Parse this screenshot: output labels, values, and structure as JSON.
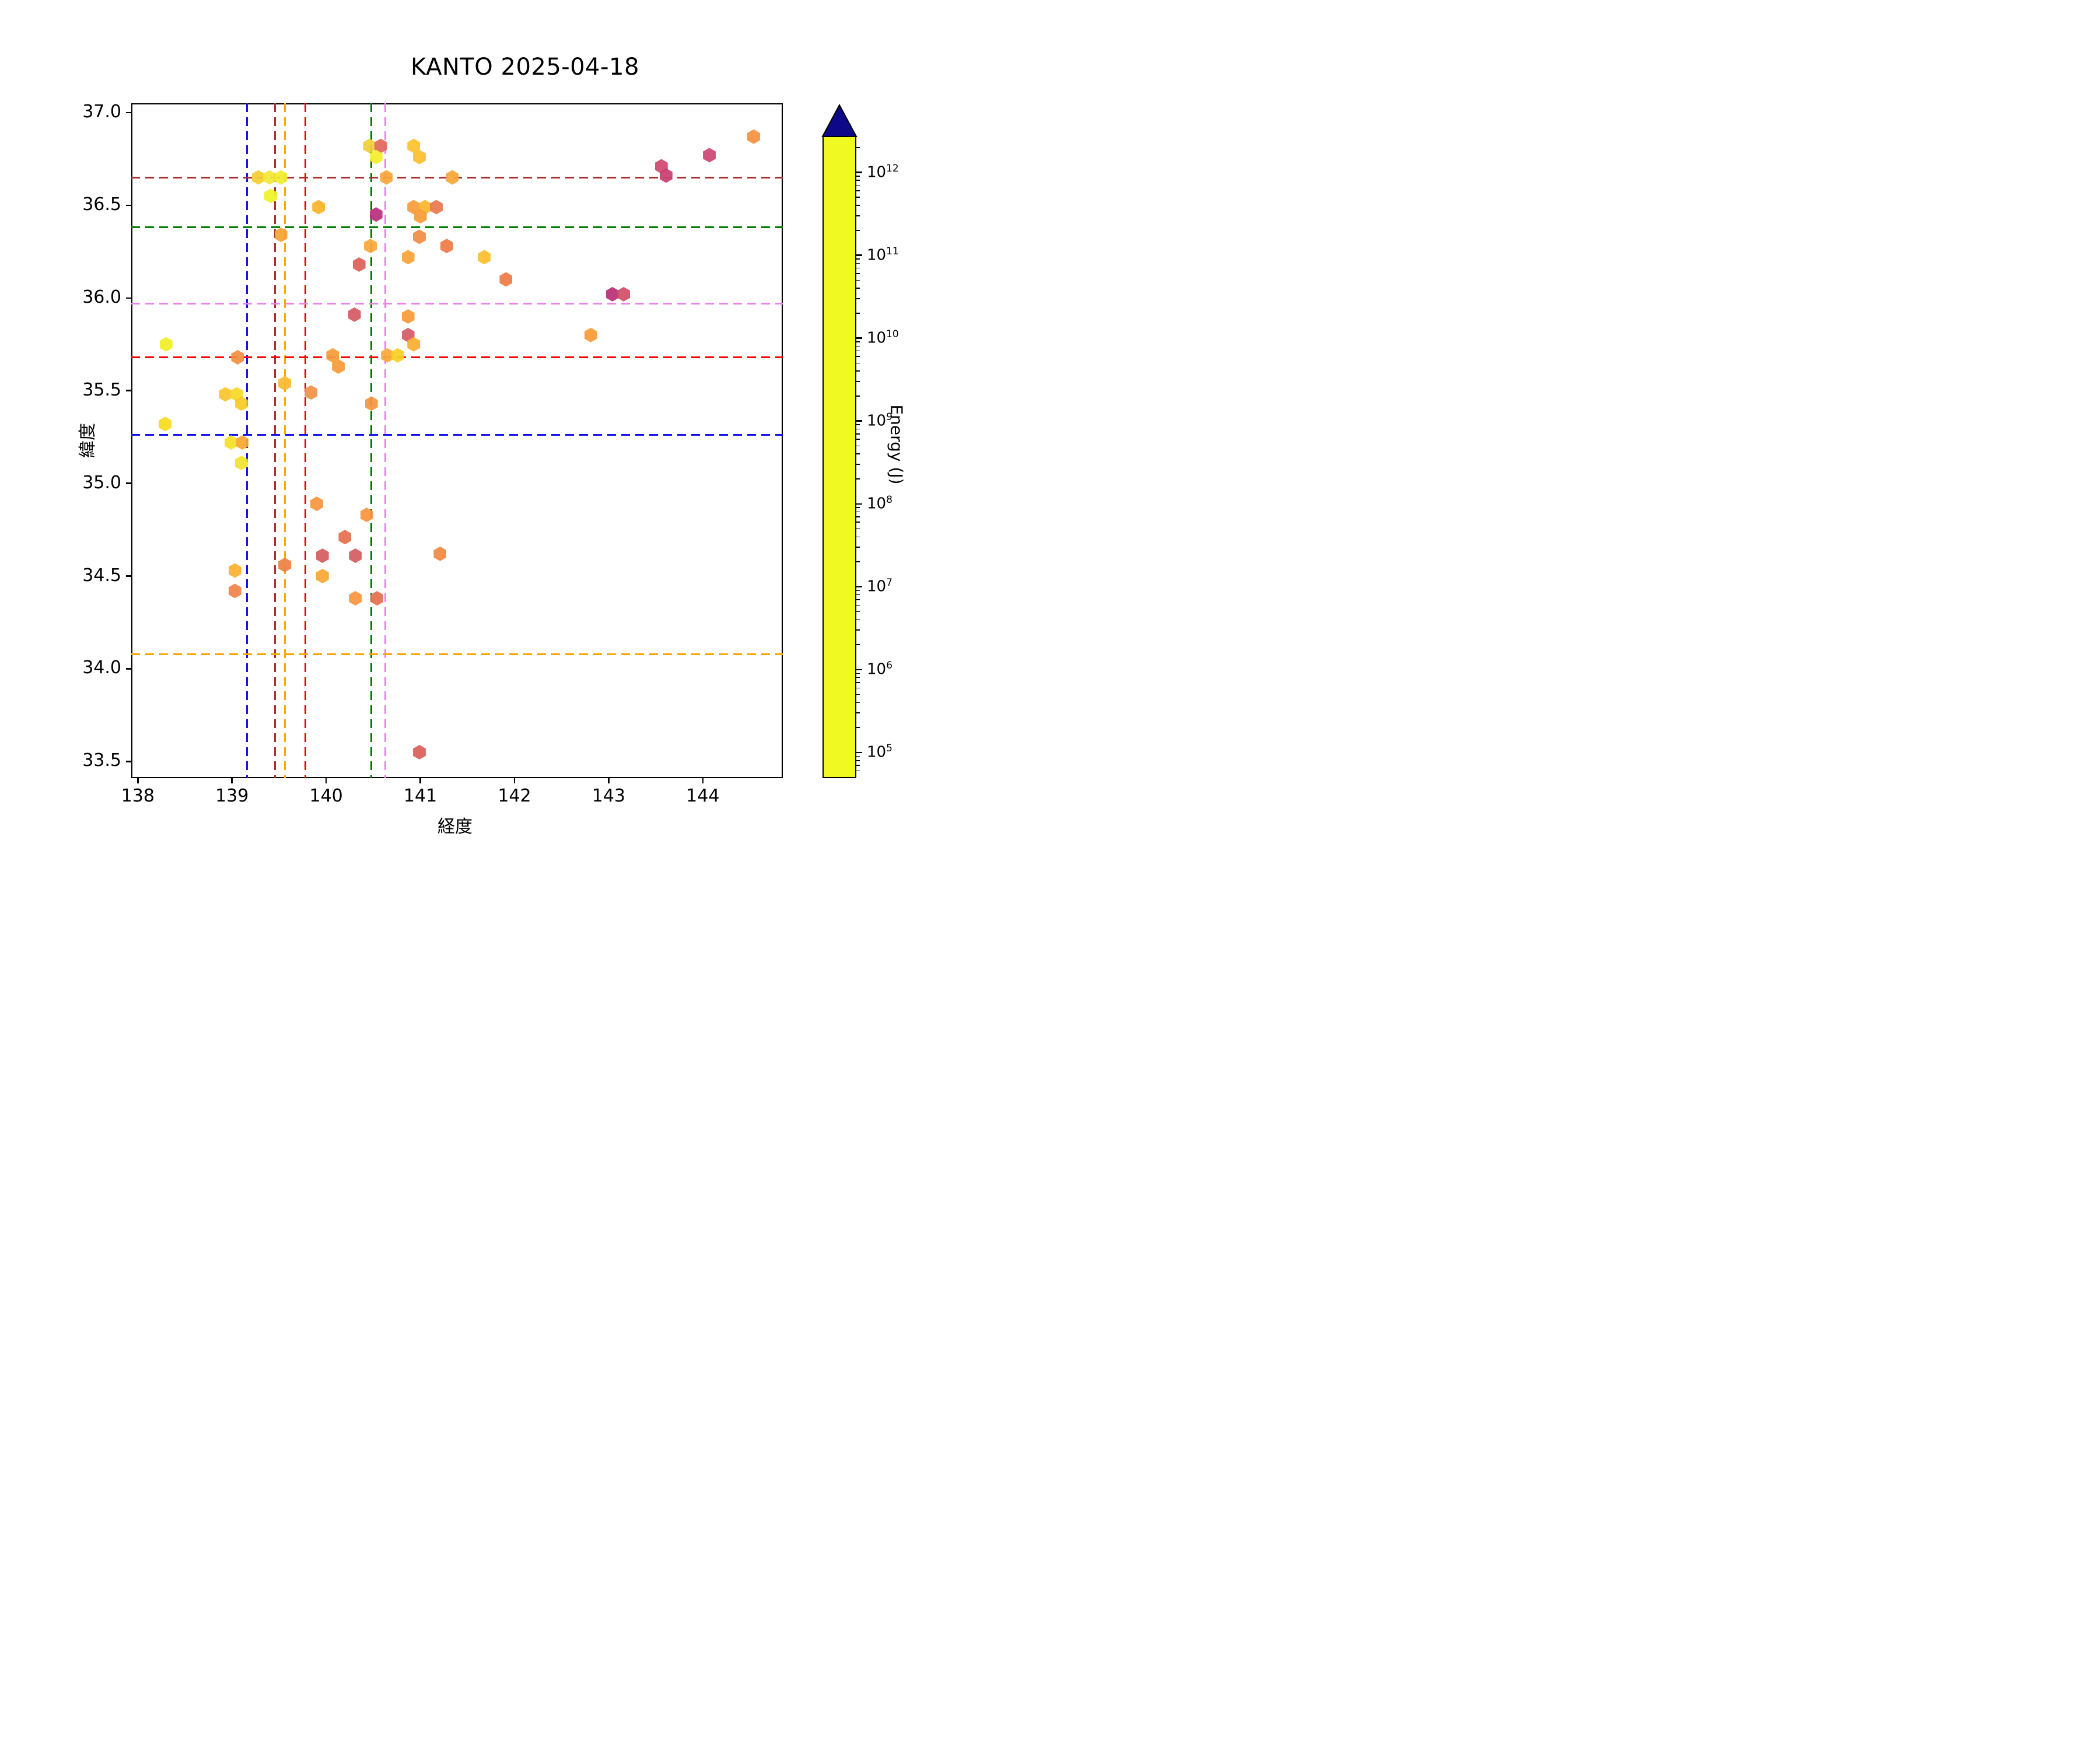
{
  "title": "KANTO 2025-04-18",
  "chart_data": {
    "type": "scatter",
    "marker": "hexagon",
    "title": "KANTO 2025-04-18",
    "xlabel": "経度",
    "ylabel": "緯度",
    "xlim": [
      137.93,
      144.85
    ],
    "ylim": [
      33.41,
      37.05
    ],
    "x_ticks": [
      138,
      139,
      140,
      141,
      142,
      143,
      144
    ],
    "y_ticks": [
      37.0,
      36.5,
      36.0,
      35.5,
      35.0,
      34.5,
      34.0,
      33.5
    ],
    "grid": false,
    "colorbar": {
      "label": "Energy (J)",
      "scale": "log",
      "tick_exponents": [
        12,
        11,
        10,
        9,
        8,
        7,
        6,
        5
      ],
      "range_log10": [
        4.73,
        12.44
      ],
      "extend": "max",
      "colormap": "plasma reversed (yellow = low energy, dark blue = high energy)",
      "gradient_stops_bottom_to_top": [
        "#f0f921",
        "#fcce25",
        "#fca636",
        "#f2844b",
        "#e16462",
        "#cc4778",
        "#b12a90",
        "#8f0da4",
        "#6a00a8",
        "#41049d",
        "#0d0887"
      ],
      "over_color": "#0d0887"
    },
    "reference_lines": {
      "vertical": [
        {
          "lon": 139.16,
          "color": "#1414e6",
          "name": "blue"
        },
        {
          "lon": 139.46,
          "color": "#a93230",
          "name": "dark-red"
        },
        {
          "lon": 139.56,
          "color": "#ffa500",
          "name": "orange"
        },
        {
          "lon": 139.78,
          "color": "#ff0000",
          "name": "red"
        },
        {
          "lon": 140.48,
          "color": "#007d00",
          "name": "green"
        },
        {
          "lon": 140.63,
          "color": "#ee82ee",
          "name": "violet"
        }
      ],
      "horizontal": [
        {
          "lat": 36.65,
          "color": "#a93230",
          "name": "dark-red"
        },
        {
          "lat": 36.38,
          "color": "#007d00",
          "name": "green"
        },
        {
          "lat": 35.97,
          "color": "#ee82ee",
          "name": "violet"
        },
        {
          "lat": 35.68,
          "color": "#ff0000",
          "name": "red"
        },
        {
          "lat": 35.26,
          "color": "#1414e6",
          "name": "blue"
        },
        {
          "lat": 34.08,
          "color": "#ffa500",
          "name": "orange"
        }
      ]
    },
    "points": [
      {
        "lon": 139.28,
        "lat": 36.65,
        "c": "#f5ce30",
        "e": 500000.0
      },
      {
        "lon": 139.4,
        "lat": 36.65,
        "c": "#f2e636",
        "e": 150000.0
      },
      {
        "lon": 139.52,
        "lat": 36.65,
        "c": "#f1ed2e",
        "e": 120000.0
      },
      {
        "lon": 139.41,
        "lat": 36.55,
        "c": "#f0f228",
        "e": 100000.0
      },
      {
        "lon": 139.92,
        "lat": 36.49,
        "c": "#fbb42c",
        "e": 1300000.0
      },
      {
        "lon": 139.52,
        "lat": 36.34,
        "c": "#f9a233",
        "e": 3000000.0
      },
      {
        "lon": 138.3,
        "lat": 35.75,
        "c": "#f1ef27",
        "e": 120000.0
      },
      {
        "lon": 139.06,
        "lat": 35.68,
        "c": "#f28f42",
        "e": 8000000.0
      },
      {
        "lon": 140.07,
        "lat": 35.69,
        "c": "#f79b3a",
        "e": 3500000.0
      },
      {
        "lon": 140.13,
        "lat": 35.63,
        "c": "#f79b3a",
        "e": 3500000.0
      },
      {
        "lon": 140.46,
        "lat": 36.82,
        "c": "#f0cf3a",
        "e": 450000.0
      },
      {
        "lon": 140.58,
        "lat": 36.82,
        "c": "#e2685b",
        "e": 70000000.0
      },
      {
        "lon": 140.53,
        "lat": 36.76,
        "c": "#f2ee2d",
        "e": 150000.0
      },
      {
        "lon": 140.93,
        "lat": 36.82,
        "c": "#fcc32c",
        "e": 700000.0
      },
      {
        "lon": 140.99,
        "lat": 36.76,
        "c": "#fcbe2e",
        "e": 900000.0
      },
      {
        "lon": 140.64,
        "lat": 36.65,
        "c": "#f8a636",
        "e": 2500000.0
      },
      {
        "lon": 141.34,
        "lat": 36.65,
        "c": "#f8a636",
        "e": 2500000.0
      },
      {
        "lon": 140.53,
        "lat": 36.45,
        "c": "#b5307f",
        "e": 1500000000.0
      },
      {
        "lon": 140.93,
        "lat": 36.49,
        "c": "#f89c3a",
        "e": 3500000.0
      },
      {
        "lon": 141.05,
        "lat": 36.49,
        "c": "#fcb62e",
        "e": 1300000.0
      },
      {
        "lon": 141.17,
        "lat": 36.49,
        "c": "#e87950",
        "e": 40000000.0
      },
      {
        "lon": 141.0,
        "lat": 36.44,
        "c": "#f89c3a",
        "e": 3500000.0
      },
      {
        "lon": 140.99,
        "lat": 36.33,
        "c": "#f28c44",
        "e": 9000000.0
      },
      {
        "lon": 140.47,
        "lat": 36.28,
        "c": "#f9a83b",
        "e": 2500000.0
      },
      {
        "lon": 140.87,
        "lat": 36.22,
        "c": "#f9a437",
        "e": 2800000.0
      },
      {
        "lon": 141.28,
        "lat": 36.28,
        "c": "#ee7c47",
        "e": 30000000.0
      },
      {
        "lon": 141.68,
        "lat": 36.22,
        "c": "#fcc02c",
        "e": 800000.0
      },
      {
        "lon": 141.91,
        "lat": 36.1,
        "c": "#ee7c47",
        "e": 30000000.0
      },
      {
        "lon": 140.35,
        "lat": 36.18,
        "c": "#dd6158",
        "e": 100000000.0
      },
      {
        "lon": 140.3,
        "lat": 35.91,
        "c": "#d45a64",
        "e": 180000000.0
      },
      {
        "lon": 140.87,
        "lat": 35.9,
        "c": "#f89b3a",
        "e": 3500000.0
      },
      {
        "lon": 140.87,
        "lat": 35.8,
        "c": "#d45a66",
        "e": 180000000.0
      },
      {
        "lon": 140.93,
        "lat": 35.75,
        "c": "#fbaf30",
        "e": 1600000.0
      },
      {
        "lon": 140.65,
        "lat": 35.69,
        "c": "#f9a93a",
        "e": 2400000.0
      },
      {
        "lon": 140.76,
        "lat": 35.69,
        "c": "#f7d024",
        "e": 320000.0
      },
      {
        "lon": 139.56,
        "lat": 35.54,
        "c": "#fbb92e",
        "e": 1100000.0
      },
      {
        "lon": 139.84,
        "lat": 35.49,
        "c": "#f0924a",
        "e": 7000000.0
      },
      {
        "lon": 140.48,
        "lat": 35.43,
        "c": "#f59440",
        "e": 6000000.0
      },
      {
        "lon": 138.93,
        "lat": 35.48,
        "c": "#fbc32d",
        "e": 700000.0
      },
      {
        "lon": 139.05,
        "lat": 35.48,
        "c": "#f6d927",
        "e": 280000.0
      },
      {
        "lon": 139.1,
        "lat": 35.43,
        "c": "#f8cb25",
        "e": 400000.0
      },
      {
        "lon": 138.29,
        "lat": 35.32,
        "c": "#f6dc1f",
        "e": 220000.0
      },
      {
        "lon": 138.99,
        "lat": 35.22,
        "c": "#f4e02a",
        "e": 180000.0
      },
      {
        "lon": 139.11,
        "lat": 35.22,
        "c": "#f9a733",
        "e": 2500000.0
      },
      {
        "lon": 139.1,
        "lat": 35.11,
        "c": "#f2e32b",
        "e": 180000.0
      },
      {
        "lon": 143.56,
        "lat": 36.71,
        "c": "#d0486f",
        "e": 300000000.0
      },
      {
        "lon": 143.61,
        "lat": 36.66,
        "c": "#c94070",
        "e": 400000000.0
      },
      {
        "lon": 144.07,
        "lat": 36.77,
        "c": "#ce4775",
        "e": 350000000.0
      },
      {
        "lon": 144.54,
        "lat": 36.87,
        "c": "#f59140",
        "e": 8000000.0
      },
      {
        "lon": 143.04,
        "lat": 36.02,
        "c": "#b93077",
        "e": 1200000000.0
      },
      {
        "lon": 143.16,
        "lat": 36.02,
        "c": "#d05068",
        "e": 250000000.0
      },
      {
        "lon": 142.81,
        "lat": 35.8,
        "c": "#f99c38",
        "e": 3500000.0
      },
      {
        "lon": 139.9,
        "lat": 34.89,
        "c": "#f9953d",
        "e": 5000000.0
      },
      {
        "lon": 140.43,
        "lat": 34.83,
        "c": "#f9953d",
        "e": 5000000.0
      },
      {
        "lon": 140.2,
        "lat": 34.71,
        "c": "#e4714f",
        "e": 50000000.0
      },
      {
        "lon": 139.96,
        "lat": 34.61,
        "c": "#d45d60",
        "e": 180000000.0
      },
      {
        "lon": 140.31,
        "lat": 34.61,
        "c": "#d45d60",
        "e": 180000000.0
      },
      {
        "lon": 139.56,
        "lat": 34.56,
        "c": "#ec8246",
        "e": 20000000.0
      },
      {
        "lon": 139.96,
        "lat": 34.5,
        "c": "#f9a734",
        "e": 2500000.0
      },
      {
        "lon": 140.31,
        "lat": 34.38,
        "c": "#f9953d",
        "e": 5000000.0
      },
      {
        "lon": 140.54,
        "lat": 34.38,
        "c": "#e4714f",
        "e": 50000000.0
      },
      {
        "lon": 139.03,
        "lat": 34.53,
        "c": "#fbb030",
        "e": 1600000.0
      },
      {
        "lon": 139.03,
        "lat": 34.42,
        "c": "#f0834a",
        "e": 15000000.0
      },
      {
        "lon": 141.21,
        "lat": 34.62,
        "c": "#f08a43",
        "e": 12000000.0
      },
      {
        "lon": 140.99,
        "lat": 33.55,
        "c": "#d9605a",
        "e": 120000000.0
      }
    ]
  }
}
